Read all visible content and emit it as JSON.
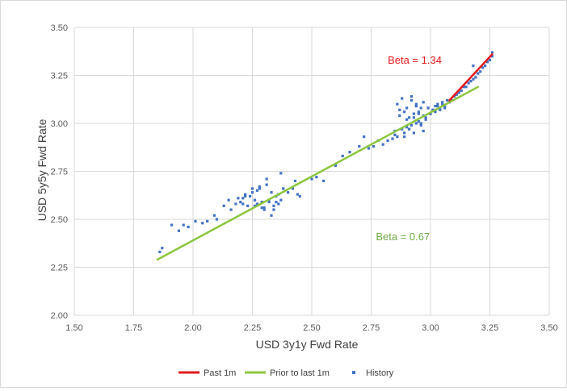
{
  "chart_data": {
    "type": "scatter",
    "xlabel": "USD 3y1y Fwd Rate",
    "ylabel": "USD 5y5y Fwd Rate",
    "xlim": [
      1.5,
      3.5
    ],
    "ylim": [
      2.0,
      3.5
    ],
    "x_ticks": [
      "1.50",
      "1.75",
      "2.00",
      "2.25",
      "2.50",
      "2.75",
      "3.00",
      "3.25",
      "3.50"
    ],
    "y_ticks": [
      "2.00",
      "2.25",
      "2.50",
      "2.75",
      "3.00",
      "3.25",
      "3.50"
    ],
    "grid": "vertical and horizontal major gridlines",
    "legend_position": "bottom",
    "legend": [
      "Past 1m",
      "Prior to last 1m",
      "History"
    ],
    "colors": {
      "past_1m": "#e31a1c",
      "prior": "#8cc63f",
      "history": "#4472c4",
      "grid": "#d9d9d9"
    },
    "annotations": [
      {
        "text": "Beta = 1.34",
        "color": "#e31a1c",
        "x": 2.82,
        "y": 3.31
      },
      {
        "text": "Beta = 0.67",
        "color": "#70ad47",
        "x": 2.77,
        "y": 2.39
      }
    ],
    "series": [
      {
        "name": "Past 1m",
        "kind": "line",
        "x": [
          3.08,
          3.26
        ],
        "y": [
          3.12,
          3.36
        ]
      },
      {
        "name": "Prior to last 1m",
        "kind": "line",
        "x": [
          1.85,
          3.2
        ],
        "y": [
          2.29,
          3.19
        ]
      },
      {
        "name": "History",
        "kind": "scatter",
        "x": [
          1.86,
          1.87,
          1.91,
          1.94,
          1.96,
          1.98,
          2.01,
          2.04,
          2.06,
          2.09,
          2.1,
          2.13,
          2.15,
          2.16,
          2.18,
          2.19,
          2.2,
          2.21,
          2.22,
          2.23,
          2.24,
          2.25,
          2.26,
          2.27,
          2.28,
          2.29,
          2.3,
          2.31,
          2.32,
          2.33,
          2.34,
          2.35,
          2.36,
          2.37,
          2.38,
          2.4,
          2.42,
          2.43,
          2.44,
          2.45,
          2.22,
          2.25,
          2.27,
          2.29,
          2.31,
          2.33,
          2.35,
          2.37,
          2.3,
          2.32,
          2.34,
          2.36,
          2.21,
          2.26,
          2.28,
          2.5,
          2.52,
          2.55,
          2.6,
          2.63,
          2.66,
          2.7,
          2.72,
          2.74,
          2.76,
          2.78,
          2.8,
          2.82,
          2.84,
          2.85,
          2.86,
          2.87,
          2.88,
          2.89,
          2.9,
          2.91,
          2.92,
          2.93,
          2.94,
          2.95,
          2.96,
          2.97,
          2.98,
          2.99,
          2.86,
          2.88,
          2.9,
          2.92,
          2.94,
          2.96,
          2.98,
          2.87,
          2.89,
          2.91,
          2.93,
          2.95,
          2.97,
          2.85,
          2.9,
          2.95,
          2.92,
          2.94,
          2.96,
          2.89,
          2.91,
          2.93,
          2.97,
          2.99,
          3.0,
          3.01,
          3.02,
          3.03,
          3.04,
          3.05,
          3.06,
          3.07,
          3.0,
          3.02,
          3.04,
          3.06,
          3.01,
          3.03,
          3.05,
          3.08,
          3.1,
          3.12,
          3.14,
          3.16,
          3.18,
          3.2,
          3.22,
          3.24,
          3.26,
          3.09,
          3.11,
          3.13,
          3.15,
          3.17,
          3.19,
          3.21,
          3.23,
          3.25,
          3.18,
          3.26
        ],
        "y": [
          2.33,
          2.35,
          2.47,
          2.44,
          2.47,
          2.46,
          2.49,
          2.48,
          2.49,
          2.52,
          2.5,
          2.57,
          2.6,
          2.55,
          2.58,
          2.61,
          2.59,
          2.58,
          2.63,
          2.57,
          2.62,
          2.64,
          2.6,
          2.58,
          2.66,
          2.56,
          2.55,
          2.68,
          2.6,
          2.52,
          2.57,
          2.62,
          2.58,
          2.74,
          2.66,
          2.64,
          2.66,
          2.7,
          2.63,
          2.62,
          2.62,
          2.66,
          2.65,
          2.59,
          2.71,
          2.64,
          2.59,
          2.6,
          2.56,
          2.59,
          2.55,
          2.63,
          2.61,
          2.57,
          2.67,
          2.71,
          2.72,
          2.7,
          2.78,
          2.83,
          2.85,
          2.88,
          2.93,
          2.87,
          2.88,
          2.91,
          2.89,
          2.91,
          2.92,
          2.96,
          2.93,
          3.04,
          2.97,
          2.95,
          3.02,
          2.97,
          2.99,
          3.05,
          3.0,
          3.01,
          2.99,
          3.04,
          3.03,
          3.08,
          3.1,
          3.13,
          3.08,
          3.12,
          3.09,
          3.0,
          3.02,
          3.07,
          2.93,
          2.97,
          3.03,
          3.06,
          3.11,
          2.94,
          2.98,
          3.05,
          3.14,
          3.1,
          3.08,
          3.06,
          3.03,
          2.95,
          2.96,
          3.08,
          3.05,
          3.07,
          3.09,
          3.1,
          3.08,
          3.11,
          3.09,
          3.12,
          3.05,
          3.06,
          3.07,
          3.08,
          3.07,
          3.09,
          3.1,
          3.11,
          3.14,
          3.16,
          3.19,
          3.21,
          3.23,
          3.26,
          3.29,
          3.32,
          3.35,
          3.12,
          3.15,
          3.17,
          3.19,
          3.22,
          3.24,
          3.27,
          3.3,
          3.33,
          3.3,
          3.37
        ]
      }
    ]
  }
}
